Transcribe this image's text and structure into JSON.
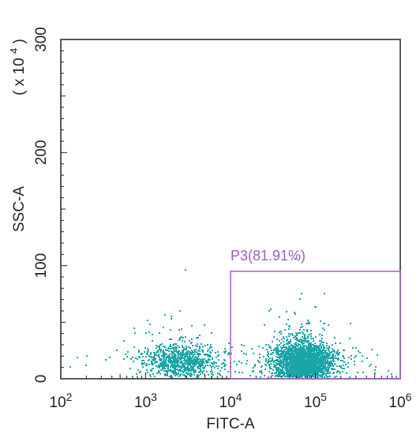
{
  "chart_data": {
    "type": "scatter",
    "xlabel": "FITC-A",
    "ylabel": "SSC-A",
    "y_multiplier_label": "( x 10",
    "y_multiplier_exp": "4",
    "y_multiplier_close": ")",
    "x_scale": "log",
    "xlim": [
      100,
      1000000
    ],
    "ylim": [
      0,
      300
    ],
    "x_ticks": [
      {
        "value": 100,
        "base": "10",
        "exp": "2"
      },
      {
        "value": 1000,
        "base": "10",
        "exp": "3"
      },
      {
        "value": 10000,
        "base": "10",
        "exp": "4"
      },
      {
        "value": 100000,
        "base": "10",
        "exp": "5"
      },
      {
        "value": 1000000,
        "base": "10",
        "exp": "6"
      }
    ],
    "y_ticks": [
      {
        "value": 0,
        "label": "0"
      },
      {
        "value": 100,
        "label": "100"
      },
      {
        "value": 200,
        "label": "200"
      },
      {
        "value": 300,
        "label": "300"
      }
    ],
    "grid": false,
    "point_color": "#1aa5a8",
    "gate": {
      "label": "P3(81.91%)",
      "color": "#a35cc7",
      "x_range": [
        10000,
        1000000
      ],
      "y_range": [
        0,
        95
      ]
    },
    "populations": [
      {
        "x_center": 2500,
        "x_log_spread": 0.22,
        "y_center": 17,
        "y_spread": 7,
        "count": 900
      },
      {
        "x_center": 70000,
        "x_log_spread": 0.17,
        "y_center": 16,
        "y_spread": 8,
        "count": 2600
      }
    ]
  }
}
